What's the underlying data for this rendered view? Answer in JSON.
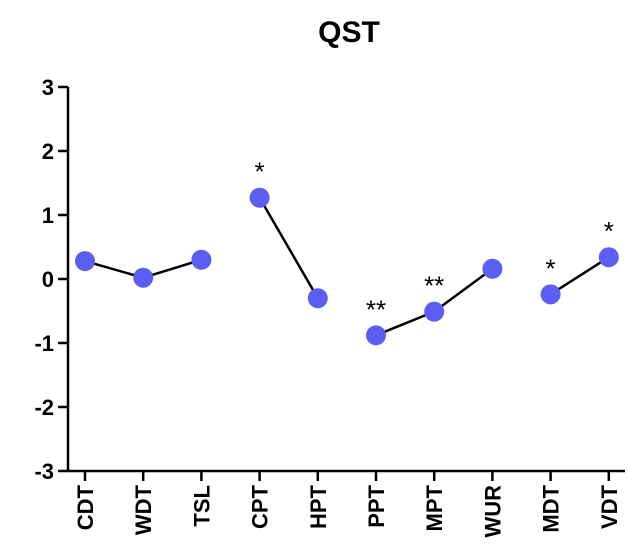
{
  "chart_data": {
    "type": "line",
    "title": "QST",
    "xlabel": "",
    "ylabel": "",
    "categories": [
      "CDT",
      "WDT",
      "TSL",
      "CPT",
      "HPT",
      "PPT",
      "MPT",
      "WUR",
      "MDT",
      "VDT"
    ],
    "values": [
      0.28,
      0.02,
      0.3,
      1.27,
      -0.3,
      -0.88,
      -0.51,
      0.16,
      -0.24,
      0.34
    ],
    "connected_groups": [
      [
        0,
        1,
        2
      ],
      [
        3,
        4
      ],
      [
        5,
        6,
        7
      ],
      [
        8,
        9
      ]
    ],
    "significance": [
      "",
      "",
      "",
      "*",
      "",
      "**",
      "**",
      "",
      "*",
      "*"
    ],
    "yticks": [
      "3",
      "2",
      "1",
      "0",
      "-1",
      "-2",
      "-3"
    ],
    "ylim": [
      -3,
      3
    ],
    "grid": false,
    "marker_color": "#5b5ef0",
    "line_color": "#000000"
  }
}
